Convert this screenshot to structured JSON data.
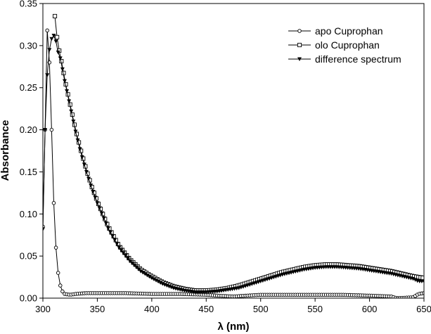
{
  "chart_data": {
    "type": "line",
    "xlabel": "λ (nm)",
    "ylabel": "Absorbance",
    "xlim": [
      300,
      650
    ],
    "ylim": [
      0,
      0.35
    ],
    "xticks": [
      "300",
      "350",
      "400",
      "450",
      "500",
      "550",
      "600",
      "650"
    ],
    "yticks": [
      "0.00",
      "0.05",
      "0.10",
      "0.15",
      "0.20",
      "0.25",
      "0.30",
      "0.35"
    ],
    "grid": false,
    "legend_position": "top-right",
    "series": [
      {
        "name": "apo Cuprophan",
        "marker": "circle",
        "color": "#000000",
        "x": [
          300,
          302,
          304,
          306,
          308,
          310,
          312,
          314,
          316,
          318,
          320,
          325,
          330,
          340,
          350,
          375,
          400,
          425,
          450,
          460,
          475,
          500,
          525,
          550,
          575,
          600,
          620,
          625,
          640,
          645,
          650
        ],
        "y": [
          0.085,
          0.2,
          0.318,
          0.28,
          0.2,
          0.113,
          0.06,
          0.03,
          0.015,
          0.008,
          0.005,
          0.004,
          0.005,
          0.006,
          0.006,
          0.006,
          0.005,
          0.005,
          0.004,
          0.003,
          0.002,
          0.004,
          0.004,
          0.004,
          0.004,
          0.003,
          0.002,
          0.0,
          0.001,
          0.005,
          0.006
        ]
      },
      {
        "name": "olo Cuprophan",
        "marker": "square",
        "color": "#000000",
        "x": [
          311,
          312,
          314,
          316,
          318,
          320,
          325,
          330,
          335,
          340,
          345,
          350,
          360,
          370,
          380,
          390,
          400,
          410,
          420,
          430,
          440,
          450,
          460,
          470,
          480,
          490,
          500,
          510,
          520,
          530,
          540,
          550,
          560,
          570,
          580,
          590,
          600,
          610,
          620,
          630,
          640,
          650
        ],
        "y": [
          0.335,
          0.32,
          0.3,
          0.288,
          0.275,
          0.26,
          0.23,
          0.2,
          0.175,
          0.152,
          0.132,
          0.115,
          0.085,
          0.062,
          0.046,
          0.034,
          0.026,
          0.019,
          0.014,
          0.011,
          0.009,
          0.009,
          0.01,
          0.012,
          0.015,
          0.019,
          0.023,
          0.027,
          0.031,
          0.034,
          0.037,
          0.039,
          0.04,
          0.04,
          0.039,
          0.038,
          0.036,
          0.034,
          0.032,
          0.029,
          0.026,
          0.024
        ]
      },
      {
        "name": "difference spectrum",
        "marker": "triangle-down",
        "color": "#000000",
        "x": [
          300,
          302,
          304,
          306,
          308,
          310,
          312,
          314,
          316,
          318,
          320,
          325,
          330,
          335,
          340,
          345,
          350,
          360,
          370,
          380,
          390,
          400,
          410,
          420,
          430,
          440,
          450,
          460,
          470,
          480,
          490,
          500,
          510,
          520,
          530,
          540,
          550,
          560,
          570,
          580,
          590,
          600,
          610,
          620,
          630,
          640,
          645,
          650
        ],
        "y": [
          0.082,
          0.2,
          0.265,
          0.295,
          0.308,
          0.312,
          0.305,
          0.292,
          0.285,
          0.272,
          0.258,
          0.228,
          0.198,
          0.172,
          0.15,
          0.13,
          0.113,
          0.083,
          0.06,
          0.044,
          0.032,
          0.024,
          0.017,
          0.012,
          0.009,
          0.007,
          0.007,
          0.008,
          0.01,
          0.012,
          0.016,
          0.02,
          0.024,
          0.028,
          0.031,
          0.034,
          0.036,
          0.037,
          0.037,
          0.036,
          0.035,
          0.033,
          0.031,
          0.029,
          0.026,
          0.023,
          0.02,
          0.02
        ]
      }
    ]
  }
}
